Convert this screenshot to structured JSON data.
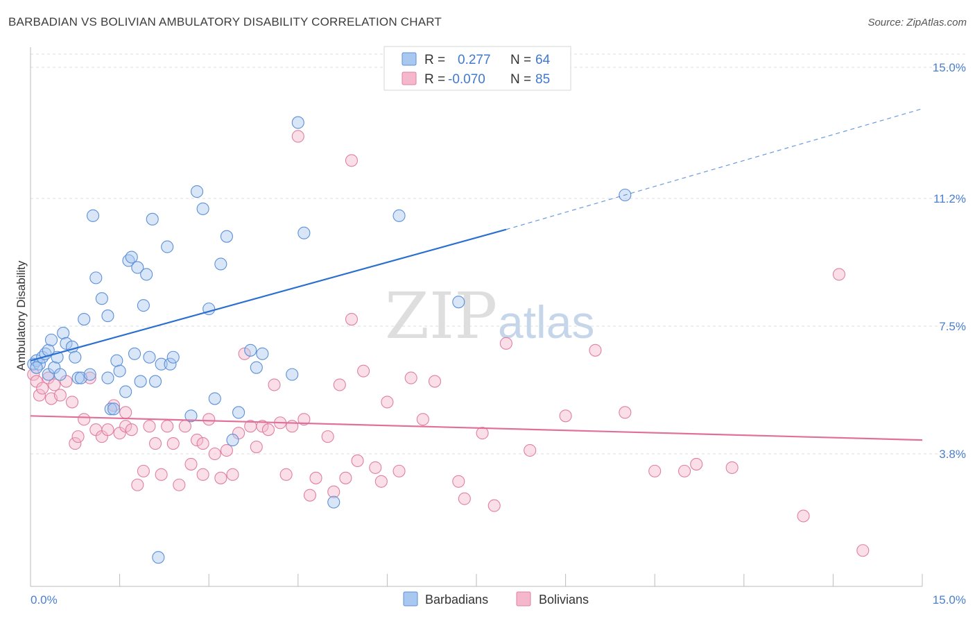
{
  "header": {
    "title": "BARBADIAN VS BOLIVIAN AMBULATORY DISABILITY CORRELATION CHART",
    "source": "Source: ZipAtlas.com"
  },
  "watermark": {
    "part1": "ZIP",
    "part2": "atlas"
  },
  "legend_top": {
    "rows": [
      {
        "r_label": "R =",
        "r_value": "0.277",
        "n_label": "N =",
        "n_value": "64"
      },
      {
        "r_label": "R =",
        "r_value": "-0.070",
        "n_label": "N =",
        "n_value": "85"
      }
    ]
  },
  "legend_bottom": {
    "items": [
      "Barbadians",
      "Bolivians"
    ]
  },
  "colors": {
    "blue_fill": "#a8c8f0",
    "blue_stroke": "#5b8fd8",
    "blue_line": "#2a6fd0",
    "pink_fill": "#f5b7cb",
    "pink_stroke": "#e07fa0",
    "pink_line": "#e0709a",
    "tick_text": "#4a7fd0",
    "grid": "#dcdcdc"
  },
  "chart_data": {
    "type": "scatter",
    "title": "BARBADIAN VS BOLIVIAN AMBULATORY DISABILITY CORRELATION CHART",
    "xlabel": "",
    "ylabel": "Ambulatory Disability",
    "xlim": [
      0,
      15
    ],
    "ylim": [
      0,
      15.5
    ],
    "x_tick_labels": [
      "0.0%",
      "15.0%"
    ],
    "y_ticks": [
      3.8,
      7.5,
      11.2,
      15.0
    ],
    "y_tick_labels": [
      "3.8%",
      "7.5%",
      "11.2%",
      "15.0%"
    ],
    "grid": true,
    "legend_position": "top-center",
    "series": [
      {
        "name": "Barbadians",
        "r": 0.277,
        "n": 64,
        "trend": {
          "x": [
            0.0,
            8.0
          ],
          "y": [
            6.5,
            10.3
          ],
          "dashed_extension": {
            "x": [
              8.0,
              15.0
            ],
            "y": [
              10.3,
              13.8
            ]
          }
        },
        "points": [
          [
            0.05,
            6.4
          ],
          [
            0.1,
            6.5
          ],
          [
            0.15,
            6.4
          ],
          [
            0.2,
            6.6
          ],
          [
            0.25,
            6.7
          ],
          [
            0.3,
            6.8
          ],
          [
            0.3,
            6.1
          ],
          [
            0.35,
            7.1
          ],
          [
            0.4,
            6.3
          ],
          [
            0.45,
            6.6
          ],
          [
            0.5,
            6.1
          ],
          [
            0.55,
            7.3
          ],
          [
            0.6,
            7.0
          ],
          [
            0.7,
            6.9
          ],
          [
            0.75,
            6.6
          ],
          [
            0.8,
            6.0
          ],
          [
            0.85,
            6.0
          ],
          [
            0.9,
            7.7
          ],
          [
            1.0,
            6.1
          ],
          [
            1.05,
            10.7
          ],
          [
            1.1,
            8.9
          ],
          [
            1.2,
            8.3
          ],
          [
            1.3,
            7.8
          ],
          [
            1.3,
            6.0
          ],
          [
            1.35,
            5.1
          ],
          [
            1.4,
            5.1
          ],
          [
            1.45,
            6.5
          ],
          [
            1.5,
            6.2
          ],
          [
            1.6,
            5.6
          ],
          [
            1.65,
            9.4
          ],
          [
            1.7,
            9.5
          ],
          [
            1.75,
            6.7
          ],
          [
            1.8,
            9.2
          ],
          [
            1.85,
            5.9
          ],
          [
            1.9,
            8.1
          ],
          [
            1.95,
            9.0
          ],
          [
            2.0,
            6.6
          ],
          [
            2.05,
            10.6
          ],
          [
            2.1,
            5.9
          ],
          [
            2.15,
            0.8
          ],
          [
            2.2,
            6.4
          ],
          [
            2.3,
            9.8
          ],
          [
            2.35,
            6.4
          ],
          [
            2.4,
            6.6
          ],
          [
            2.7,
            4.9
          ],
          [
            2.8,
            11.4
          ],
          [
            2.9,
            10.9
          ],
          [
            3.0,
            8.0
          ],
          [
            3.1,
            5.4
          ],
          [
            3.2,
            9.3
          ],
          [
            3.3,
            10.1
          ],
          [
            3.4,
            4.2
          ],
          [
            3.5,
            5.0
          ],
          [
            3.7,
            6.8
          ],
          [
            3.8,
            6.3
          ],
          [
            3.9,
            6.7
          ],
          [
            4.4,
            6.1
          ],
          [
            4.5,
            13.4
          ],
          [
            4.6,
            10.2
          ],
          [
            5.1,
            2.4
          ],
          [
            6.2,
            10.7
          ],
          [
            7.2,
            8.2
          ],
          [
            10.0,
            11.3
          ],
          [
            0.1,
            6.3
          ]
        ]
      },
      {
        "name": "Bolivians",
        "r": -0.07,
        "n": 85,
        "trend": {
          "x": [
            0.0,
            15.0
          ],
          "y": [
            4.9,
            4.2
          ]
        },
        "points": [
          [
            0.05,
            6.1
          ],
          [
            0.1,
            5.9
          ],
          [
            0.15,
            5.5
          ],
          [
            0.2,
            5.7
          ],
          [
            0.3,
            6.0
          ],
          [
            0.35,
            5.4
          ],
          [
            0.4,
            5.8
          ],
          [
            0.5,
            5.5
          ],
          [
            0.6,
            5.9
          ],
          [
            0.7,
            5.3
          ],
          [
            0.75,
            4.1
          ],
          [
            0.8,
            4.3
          ],
          [
            0.9,
            4.8
          ],
          [
            1.0,
            6.0
          ],
          [
            1.1,
            4.5
          ],
          [
            1.2,
            4.3
          ],
          [
            1.3,
            4.5
          ],
          [
            1.4,
            5.2
          ],
          [
            1.5,
            4.4
          ],
          [
            1.6,
            4.6
          ],
          [
            1.7,
            4.5
          ],
          [
            1.8,
            2.9
          ],
          [
            1.9,
            3.3
          ],
          [
            2.0,
            4.6
          ],
          [
            2.1,
            4.1
          ],
          [
            2.2,
            3.2
          ],
          [
            2.3,
            4.6
          ],
          [
            2.4,
            4.1
          ],
          [
            2.5,
            2.9
          ],
          [
            2.6,
            4.6
          ],
          [
            2.7,
            3.5
          ],
          [
            2.8,
            4.2
          ],
          [
            2.9,
            4.1
          ],
          [
            3.0,
            4.8
          ],
          [
            3.1,
            3.8
          ],
          [
            3.2,
            3.1
          ],
          [
            3.3,
            3.9
          ],
          [
            3.4,
            3.2
          ],
          [
            3.5,
            4.4
          ],
          [
            3.6,
            6.7
          ],
          [
            3.7,
            4.6
          ],
          [
            3.8,
            4.0
          ],
          [
            3.9,
            4.6
          ],
          [
            4.0,
            4.5
          ],
          [
            4.1,
            5.8
          ],
          [
            4.2,
            4.7
          ],
          [
            4.3,
            3.2
          ],
          [
            4.4,
            4.6
          ],
          [
            4.5,
            13.0
          ],
          [
            4.6,
            4.8
          ],
          [
            4.7,
            2.6
          ],
          [
            4.8,
            3.1
          ],
          [
            5.0,
            4.3
          ],
          [
            5.1,
            2.7
          ],
          [
            5.2,
            5.8
          ],
          [
            5.3,
            3.1
          ],
          [
            5.4,
            12.3
          ],
          [
            5.5,
            3.6
          ],
          [
            5.6,
            6.2
          ],
          [
            5.8,
            3.4
          ],
          [
            5.9,
            3.0
          ],
          [
            6.0,
            5.3
          ],
          [
            6.2,
            3.3
          ],
          [
            6.4,
            6.0
          ],
          [
            6.6,
            4.8
          ],
          [
            6.8,
            5.9
          ],
          [
            7.2,
            3.0
          ],
          [
            7.3,
            2.5
          ],
          [
            7.6,
            4.4
          ],
          [
            7.8,
            2.3
          ],
          [
            8.0,
            7.0
          ],
          [
            8.4,
            3.9
          ],
          [
            9.0,
            4.9
          ],
          [
            9.5,
            6.8
          ],
          [
            10.0,
            5.0
          ],
          [
            10.5,
            3.3
          ],
          [
            11.0,
            3.3
          ],
          [
            11.2,
            3.5
          ],
          [
            11.8,
            3.4
          ],
          [
            13.0,
            2.0
          ],
          [
            13.6,
            9.0
          ],
          [
            14.0,
            1.0
          ],
          [
            1.6,
            5.0
          ],
          [
            2.9,
            3.2
          ],
          [
            5.4,
            7.7
          ]
        ]
      }
    ]
  }
}
